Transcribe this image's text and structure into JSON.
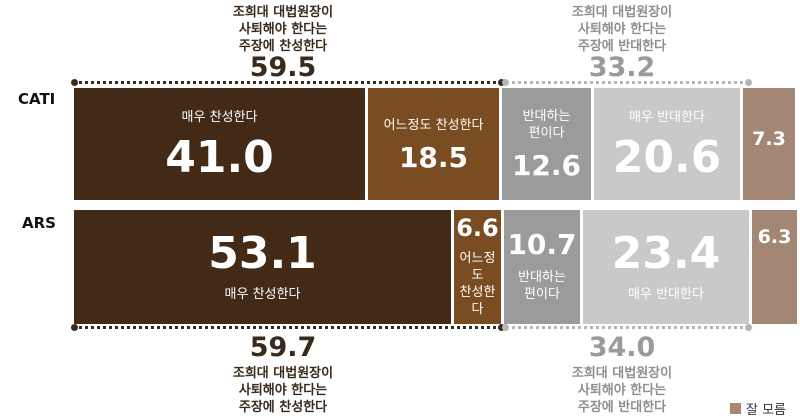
{
  "chart_data": {
    "type": "bar",
    "orientation": "horizontal-stacked",
    "rows": [
      {
        "name": "CATI",
        "segments": [
          {
            "key": "strong_support",
            "label": "매우 찬성한다",
            "value": 41.0,
            "value_text": "41.0",
            "color": "#422a17"
          },
          {
            "key": "some_support",
            "label": "어느정도 찬성한다",
            "value": 18.5,
            "value_text": "18.5",
            "color": "#7a4c22"
          },
          {
            "key": "some_oppose",
            "label": "반대하는\n편이다",
            "value": 12.6,
            "value_text": "12.6",
            "color": "#9b9b9b"
          },
          {
            "key": "strong_oppose",
            "label": "매우 반대한다",
            "value": 20.6,
            "value_text": "20.6",
            "color": "#c9c9c9"
          },
          {
            "key": "dont_know",
            "label": "",
            "value": 7.3,
            "value_text": "7.3",
            "color": "#a48675"
          }
        ]
      },
      {
        "name": "ARS",
        "segments": [
          {
            "key": "strong_support",
            "label": "매우 찬성한다",
            "value": 53.1,
            "value_text": "53.1",
            "color": "#422a17"
          },
          {
            "key": "some_support",
            "label": "어느정도\n찬성한다",
            "value": 6.6,
            "value_text": "6.6",
            "color": "#7a4c22"
          },
          {
            "key": "some_oppose",
            "label": "반대하는\n편이다",
            "value": 10.7,
            "value_text": "10.7",
            "color": "#9b9b9b"
          },
          {
            "key": "strong_oppose",
            "label": "매우 반대한다",
            "value": 23.4,
            "value_text": "23.4",
            "color": "#c9c9c9"
          },
          {
            "key": "dont_know",
            "label": "",
            "value": 6.3,
            "value_text": "6.3",
            "color": "#a48675"
          }
        ]
      }
    ],
    "groups": {
      "cati_support": {
        "label": "조희대 대법원장이\n사퇴해야 한다는\n주장에 찬성한다",
        "total": "59.5"
      },
      "cati_oppose": {
        "label": "조희대 대법원장이\n사퇴해야 한다는\n주장에 반대한다",
        "total": "33.2"
      },
      "ars_support": {
        "label": "조희대 대법원장이\n사퇴해야 한다는\n주장에 찬성한다",
        "total": "59.7"
      },
      "ars_oppose": {
        "label": "조희대 대법원장이\n사퇴해야 한다는\n주장에 반대한다",
        "total": "34.0"
      }
    },
    "legend": {
      "label": "잘 모름",
      "color": "#a48675",
      "position": "bottom-right"
    }
  }
}
